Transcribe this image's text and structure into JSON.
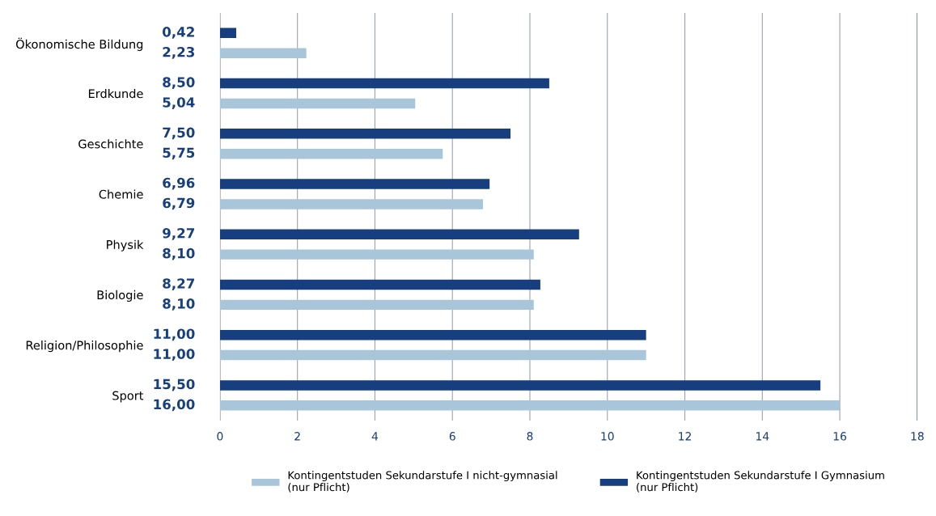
{
  "chart_data": {
    "type": "bar",
    "orientation": "horizontal",
    "categories": [
      "Ökonomische Bildung",
      "Erdkunde",
      "Geschichte",
      "Chemie",
      "Physik",
      "Biologie",
      "Religion/Philosophie",
      "Sport"
    ],
    "series": [
      {
        "name": "Kontingentstuden Sekundarstufe I nicht-gymnasial\n(nur Pflicht)",
        "color": "#a9c5da",
        "values": [
          2.23,
          5.04,
          5.75,
          6.79,
          8.1,
          8.1,
          11.0,
          16.0
        ],
        "value_labels": [
          "2,23",
          "5,04",
          "5,75",
          "6,79",
          "8,10",
          "8,10",
          "11,00",
          "16,00"
        ]
      },
      {
        "name": "Kontingentstuden Sekundarstufe I Gymnasium\n(nur Pflicht)",
        "color": "#173f7f",
        "values": [
          0.42,
          8.5,
          7.5,
          6.96,
          9.27,
          8.27,
          11.0,
          15.5
        ],
        "value_labels": [
          "0,42",
          "8,50",
          "7,50",
          "6,96",
          "9,27",
          "8,27",
          "11,00",
          "15,50"
        ]
      }
    ],
    "xlim": [
      0,
      18
    ],
    "xticks": [
      0,
      2,
      4,
      6,
      8,
      10,
      12,
      14,
      16,
      18
    ],
    "grid": "x",
    "legend": "bottom"
  }
}
